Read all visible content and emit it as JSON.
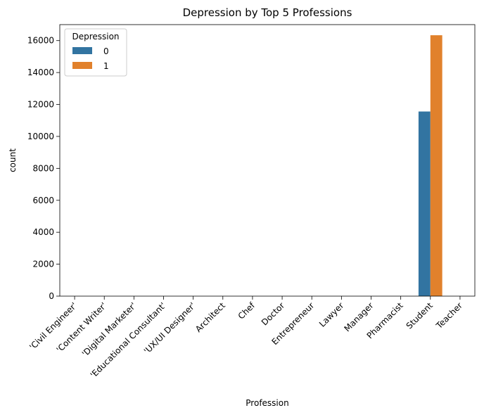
{
  "chart_data": {
    "type": "bar",
    "title": "Depression by Top 5 Professions",
    "xlabel": "Profession",
    "ylabel": "count",
    "categories": [
      "'Civil Engineer'",
      "'Content Writer'",
      "'Digital Marketer'",
      "'Educational Consultant'",
      "'UX/UI Designer'",
      "Architect",
      "Chef",
      "Doctor",
      "Entrepreneur",
      "Lawyer",
      "Manager",
      "Pharmacist",
      "Student",
      "Teacher"
    ],
    "series": [
      {
        "name": "0",
        "color": "#3274a1",
        "values": [
          0,
          0,
          0,
          0,
          0,
          0,
          0,
          0,
          0,
          0,
          0,
          0,
          11560,
          0
        ]
      },
      {
        "name": "1",
        "color": "#e1812c",
        "values": [
          0,
          0,
          0,
          0,
          0,
          0,
          0,
          0,
          0,
          0,
          0,
          0,
          16335,
          0
        ]
      }
    ],
    "ylim": [
      0,
      17000
    ],
    "yticks": [
      0,
      2000,
      4000,
      6000,
      8000,
      10000,
      12000,
      14000,
      16000
    ],
    "legend": {
      "title": "Depression",
      "position": "top-left"
    },
    "grid": false
  }
}
